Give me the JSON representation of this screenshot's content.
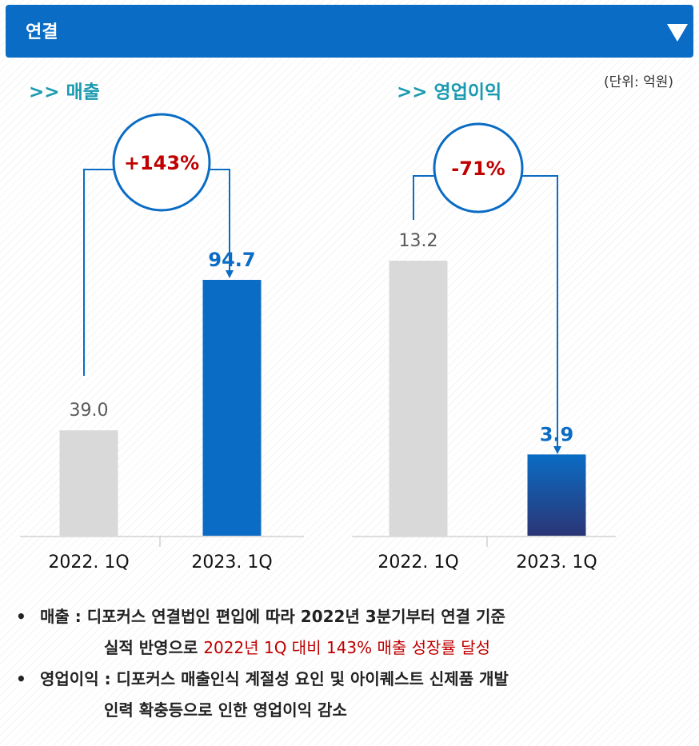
{
  "header": {
    "title": "연결"
  },
  "unit": "(단위: 억원)",
  "chart_data": [
    {
      "type": "bar",
      "title": ">> 매출",
      "categories": [
        "2022. 1Q",
        "2023. 1Q"
      ],
      "values": [
        39.0,
        94.7
      ],
      "value_labels": [
        "39.0",
        "94.7"
      ],
      "colors": [
        "#d9d9d9",
        "#0a6cc4"
      ],
      "annotation": "+143%"
    },
    {
      "type": "bar",
      "title": ">> 영업이익",
      "categories": [
        "2022. 1Q",
        "2023. 1Q"
      ],
      "values": [
        13.2,
        3.9
      ],
      "value_labels": [
        "13.2",
        "3.9"
      ],
      "colors": [
        "#d9d9d9",
        "#2b3576"
      ],
      "annotation": "-71%"
    }
  ],
  "notes": [
    {
      "bullet": "•",
      "lines": [
        [
          {
            "text": "매출 : 디포커스 연결법인 편입에 따라 2022년 3분기부터 연결 기준"
          }
        ],
        [
          {
            "text": "실적 반영으로 "
          },
          {
            "text": "2022년 1Q 대비 143% 매출 성장률 달성",
            "color": "#c00000"
          }
        ]
      ]
    },
    {
      "bullet": "•",
      "lines": [
        [
          {
            "text": "영업이익 : 디포커스 매출인식 계절성 요인 및 아이퀘스트 신제품 개발"
          }
        ],
        [
          {
            "text": "인력 확충등으로 인한 영업이익 감소"
          }
        ]
      ]
    }
  ]
}
